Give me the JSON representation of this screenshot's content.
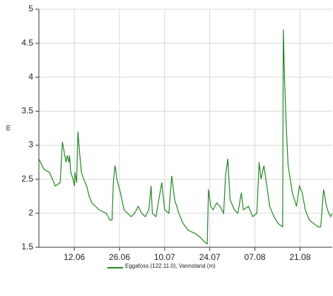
{
  "chart_data": {
    "type": "line",
    "y_label": "m",
    "x": [
      152.0,
      153.5,
      155.3,
      157.1,
      158.6,
      159.3,
      160.4,
      160.8,
      161.3,
      161.5,
      161.9,
      162.6,
      163.0,
      163.2,
      163.7,
      164.1,
      164.6,
      165.2,
      165.9,
      166.8,
      167.6,
      168.5,
      170.7,
      172.9,
      174.0,
      174.7,
      175.1,
      175.6,
      176.2,
      177.3,
      178.4,
      179.5,
      180.6,
      181.7,
      182.8,
      183.9,
      185.0,
      186.1,
      186.8,
      187.2,
      188.3,
      190.1,
      191.0,
      192.3,
      193.2,
      194.1,
      195.4,
      196.7,
      198.3,
      200.5,
      202.0,
      203.3,
      204.2,
      204.6,
      205.3,
      206.0,
      207.1,
      208.2,
      209.3,
      209.9,
      210.6,
      211.3,
      212.6,
      213.7,
      214.8,
      215.4,
      217.0,
      218.3,
      219.6,
      220.3,
      220.9,
      221.8,
      222.7,
      223.6,
      224.9,
      226.2,
      227.6,
      227.8,
      228.2,
      228.7,
      229.3,
      230.6,
      231.9,
      232.8,
      233.7,
      234.6,
      235.9,
      237.2,
      238.6,
      239.4,
      240.3,
      241.2,
      241.9,
      242.5,
      243.0
    ],
    "series": [
      {
        "name": "Eggafoss (122.11.0), Vannstand (m)",
        "color": "#1e8a1e",
        "values": [
          2.8,
          2.65,
          2.6,
          2.4,
          2.45,
          3.05,
          2.75,
          2.85,
          2.75,
          2.85,
          2.6,
          2.5,
          2.4,
          2.6,
          2.45,
          3.2,
          2.9,
          2.6,
          2.5,
          2.4,
          2.25,
          2.15,
          2.05,
          2.0,
          1.9,
          1.9,
          2.45,
          2.7,
          2.5,
          2.3,
          2.05,
          2.0,
          1.95,
          2.0,
          2.1,
          2.0,
          1.95,
          2.05,
          2.4,
          2.0,
          1.95,
          2.45,
          2.05,
          2.0,
          2.55,
          2.2,
          2.0,
          1.85,
          1.75,
          1.7,
          1.65,
          1.58,
          1.55,
          2.35,
          2.1,
          2.05,
          2.15,
          2.1,
          2.0,
          2.55,
          2.8,
          2.2,
          2.05,
          2.0,
          2.3,
          2.05,
          2.1,
          1.95,
          2.0,
          2.75,
          2.5,
          2.7,
          2.4,
          2.1,
          1.95,
          1.85,
          1.8,
          4.7,
          3.95,
          3.3,
          2.7,
          2.3,
          2.1,
          2.4,
          2.3,
          2.05,
          1.9,
          1.85,
          1.8,
          1.8,
          2.35,
          2.1,
          2.0,
          1.95,
          2.0
        ]
      }
    ],
    "xlim": [
      152,
      243
    ],
    "xticks": [
      {
        "value": 163,
        "label": "12.06"
      },
      {
        "value": 177,
        "label": "26.06"
      },
      {
        "value": 191,
        "label": "10.07"
      },
      {
        "value": 205,
        "label": "24.07"
      },
      {
        "value": 219,
        "label": "07.08"
      },
      {
        "value": 233,
        "label": "21.08"
      }
    ],
    "ylim": [
      1.5,
      5
    ],
    "yticks": [
      1.5,
      2,
      2.5,
      3,
      3.5,
      4,
      4.5,
      5
    ],
    "grid": true
  }
}
